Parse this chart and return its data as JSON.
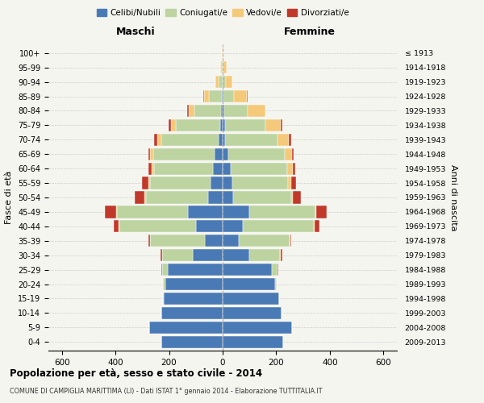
{
  "age_groups": [
    "0-4",
    "5-9",
    "10-14",
    "15-19",
    "20-24",
    "25-29",
    "30-34",
    "35-39",
    "40-44",
    "45-49",
    "50-54",
    "55-59",
    "60-64",
    "65-69",
    "70-74",
    "75-79",
    "80-84",
    "85-89",
    "90-94",
    "95-99",
    "100+"
  ],
  "birth_years": [
    "2009-2013",
    "2004-2008",
    "1999-2003",
    "1994-1998",
    "1989-1993",
    "1984-1988",
    "1979-1983",
    "1974-1978",
    "1969-1973",
    "1964-1968",
    "1959-1963",
    "1954-1958",
    "1949-1953",
    "1944-1948",
    "1939-1943",
    "1934-1938",
    "1929-1933",
    "1924-1928",
    "1919-1923",
    "1914-1918",
    "≤ 1913"
  ],
  "colors": {
    "celibi": "#4a7ab5",
    "coniugati": "#bdd4a0",
    "vedovi": "#f5c97a",
    "divorziati": "#c0392b"
  },
  "males": {
    "celibi": [
      230,
      275,
      230,
      220,
      215,
      205,
      110,
      65,
      100,
      130,
      55,
      45,
      35,
      30,
      15,
      10,
      5,
      3,
      1,
      0,
      0
    ],
    "coniugati": [
      0,
      0,
      0,
      2,
      8,
      20,
      115,
      205,
      285,
      265,
      230,
      225,
      220,
      230,
      215,
      165,
      100,
      48,
      15,
      5,
      1
    ],
    "vedovi": [
      0,
      0,
      0,
      0,
      0,
      0,
      2,
      2,
      2,
      3,
      8,
      8,
      10,
      10,
      15,
      18,
      22,
      18,
      10,
      5,
      1
    ],
    "divorziati": [
      0,
      0,
      0,
      0,
      0,
      3,
      5,
      5,
      20,
      40,
      35,
      22,
      12,
      8,
      12,
      8,
      4,
      2,
      0,
      0,
      0
    ]
  },
  "females": {
    "celibi": [
      225,
      260,
      220,
      210,
      195,
      185,
      100,
      60,
      75,
      100,
      40,
      35,
      30,
      20,
      10,
      8,
      5,
      3,
      1,
      1,
      0
    ],
    "coniugati": [
      0,
      0,
      0,
      2,
      8,
      20,
      115,
      190,
      265,
      245,
      215,
      210,
      210,
      212,
      195,
      150,
      88,
      38,
      12,
      3,
      1
    ],
    "vedovi": [
      0,
      0,
      0,
      0,
      0,
      0,
      2,
      2,
      3,
      5,
      8,
      12,
      22,
      28,
      42,
      60,
      65,
      50,
      22,
      10,
      3
    ],
    "divorziati": [
      0,
      0,
      0,
      0,
      0,
      3,
      5,
      5,
      18,
      38,
      30,
      18,
      10,
      5,
      8,
      4,
      2,
      1,
      0,
      0,
      0
    ]
  },
  "title": "Popolazione per età, sesso e stato civile - 2014",
  "subtitle": "COMUNE DI CAMPIGLIA MARITTIMA (LI) - Dati ISTAT 1° gennaio 2014 - Elaborazione TUTTITALIA.IT",
  "xlabel_left": "Maschi",
  "xlabel_right": "Femmine",
  "ylabel_left": "Fasce di età",
  "ylabel_right": "Anni di nascita",
  "xlim": 650,
  "xticks": [
    -600,
    -400,
    -200,
    0,
    200,
    400,
    600
  ],
  "legend_labels": [
    "Celibi/Nubili",
    "Coniugati/e",
    "Vedovi/e",
    "Divorziati/e"
  ],
  "background_color": "#f5f5f0",
  "grid_color": "#cccccc",
  "bar_height": 0.85
}
